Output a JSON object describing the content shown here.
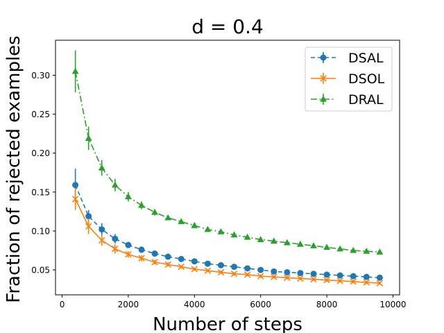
{
  "chart_data": {
    "type": "line",
    "title": "d = 0.4",
    "xlabel": "Number of steps",
    "ylabel": "Fraction of rejected examples",
    "xlim": [
      -200,
      10200
    ],
    "ylim": [
      0.018,
      0.345
    ],
    "xticks": [
      0,
      2000,
      4000,
      6000,
      8000,
      10000
    ],
    "xtick_labels": [
      "0",
      "2000",
      "4000",
      "6000",
      "8000",
      "10000"
    ],
    "yticks": [
      0.05,
      0.1,
      0.15,
      0.2,
      0.25,
      0.3
    ],
    "ytick_labels": [
      "0.05",
      "0.10",
      "0.15",
      "0.20",
      "0.25",
      "0.30"
    ],
    "grid": false,
    "legend_position": "top-right",
    "x": [
      400,
      800,
      1200,
      1600,
      2000,
      2400,
      2800,
      3200,
      3600,
      4000,
      4400,
      4800,
      5200,
      5600,
      6000,
      6400,
      6800,
      7200,
      7600,
      8000,
      8400,
      8800,
      9200,
      9600
    ],
    "series": [
      {
        "name": "DSAL",
        "color": "#1f77b4",
        "linestyle": "dashed",
        "marker": "circle",
        "values": [
          0.159,
          0.119,
          0.102,
          0.09,
          0.082,
          0.076,
          0.071,
          0.067,
          0.064,
          0.061,
          0.058,
          0.056,
          0.054,
          0.052,
          0.05,
          0.048,
          0.047,
          0.046,
          0.045,
          0.044,
          0.043,
          0.042,
          0.041,
          0.04
        ],
        "errors": [
          0.021,
          0.008,
          0.008,
          0.006,
          0.004,
          0.004,
          0.003,
          0.003,
          0.002,
          0.002,
          0.002,
          0.002,
          0.002,
          0.002,
          0.002,
          0.002,
          0.002,
          0.002,
          0.002,
          0.002,
          0.002,
          0.002,
          0.002,
          0.002
        ]
      },
      {
        "name": "DSOL",
        "color": "#ff7f0e",
        "linestyle": "solid",
        "marker": "x",
        "values": [
          0.141,
          0.106,
          0.088,
          0.077,
          0.07,
          0.065,
          0.06,
          0.057,
          0.054,
          0.051,
          0.049,
          0.047,
          0.045,
          0.044,
          0.042,
          0.041,
          0.04,
          0.039,
          0.038,
          0.037,
          0.036,
          0.035,
          0.034,
          0.033
        ],
        "errors": [
          0.014,
          0.01,
          0.007,
          0.006,
          0.004,
          0.004,
          0.003,
          0.003,
          0.002,
          0.002,
          0.002,
          0.002,
          0.002,
          0.002,
          0.002,
          0.002,
          0.002,
          0.002,
          0.002,
          0.002,
          0.002,
          0.002,
          0.002,
          0.002
        ]
      },
      {
        "name": "DRAL",
        "color": "#2ca02c",
        "linestyle": "dashdot",
        "marker": "triangle",
        "values": [
          0.305,
          0.219,
          0.181,
          0.159,
          0.144,
          0.133,
          0.124,
          0.117,
          0.112,
          0.107,
          0.102,
          0.099,
          0.095,
          0.092,
          0.089,
          0.087,
          0.085,
          0.083,
          0.081,
          0.079,
          0.077,
          0.075,
          0.074,
          0.073
        ],
        "errors": [
          0.027,
          0.015,
          0.01,
          0.008,
          0.006,
          0.005,
          0.004,
          0.003,
          0.003,
          0.003,
          0.003,
          0.003,
          0.002,
          0.002,
          0.002,
          0.002,
          0.002,
          0.002,
          0.002,
          0.002,
          0.002,
          0.002,
          0.002,
          0.002
        ]
      }
    ]
  }
}
